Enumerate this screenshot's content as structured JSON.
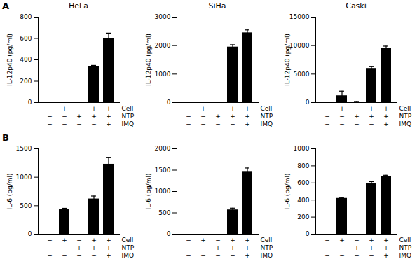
{
  "chart_data": [
    {
      "type": "bar",
      "title": "HeLa",
      "annotations": [
        "A"
      ],
      "y_label": "IL-12p40 (pg/ml)",
      "categories": [
        null,
        null,
        null,
        null,
        null
      ],
      "values": [
        0,
        0,
        0,
        340,
        600
      ],
      "errors": [
        0,
        0,
        0,
        8,
        50
      ],
      "conditions": [
        {
          "name": "Cell",
          "signs": [
            "−",
            "+",
            "−",
            "+",
            "+"
          ]
        },
        {
          "name": "NTP",
          "signs": [
            "−",
            "−",
            "+",
            "+",
            "+"
          ]
        },
        {
          "name": "IMQ",
          "signs": [
            "−",
            "−",
            "−",
            "−",
            "+"
          ]
        }
      ],
      "color": "#000000",
      "ylim": [
        0,
        800
      ],
      "yticks": [
        0,
        200,
        400,
        600,
        800
      ]
    },
    {
      "type": "bar",
      "title": "SiHa",
      "y_label": "IL-12p40 (pg/ml)",
      "categories": [
        null,
        null,
        null,
        null,
        null
      ],
      "values": [
        0,
        0,
        0,
        1950,
        2450
      ],
      "errors": [
        0,
        0,
        0,
        80,
        100
      ],
      "conditions": [
        {
          "name": "Cell",
          "signs": [
            "−",
            "+",
            "−",
            "+",
            "+"
          ]
        },
        {
          "name": "NTP",
          "signs": [
            "−",
            "−",
            "+",
            "+",
            "+"
          ]
        },
        {
          "name": "IMQ",
          "signs": [
            "−",
            "−",
            "−",
            "−",
            "+"
          ]
        }
      ],
      "color": "#000000",
      "ylim": [
        0,
        3000
      ],
      "yticks": [
        0,
        1000,
        2000,
        3000
      ]
    },
    {
      "type": "bar",
      "title": "Caski",
      "y_label": "IL-12p40 (pg/ml)",
      "categories": [
        null,
        null,
        null,
        null,
        null
      ],
      "values": [
        0,
        1200,
        100,
        6000,
        9500
      ],
      "errors": [
        0,
        800,
        100,
        300,
        400
      ],
      "conditions": [
        {
          "name": "Cell",
          "signs": [
            "−",
            "+",
            "−",
            "+",
            "+"
          ]
        },
        {
          "name": "NTP",
          "signs": [
            "−",
            "−",
            "+",
            "+",
            "+"
          ]
        },
        {
          "name": "IMQ",
          "signs": [
            "−",
            "−",
            "−",
            "−",
            "+"
          ]
        }
      ],
      "color": "#000000",
      "ylim": [
        0,
        15000
      ],
      "yticks": [
        0,
        5000,
        10000,
        15000
      ]
    },
    {
      "type": "bar",
      "annotations": [
        "B"
      ],
      "y_label": "IL-6 (pg/ml)",
      "categories": [
        null,
        null,
        null,
        null,
        null
      ],
      "values": [
        0,
        430,
        0,
        620,
        1230
      ],
      "errors": [
        0,
        25,
        0,
        50,
        120
      ],
      "conditions": [
        {
          "name": "Cell",
          "signs": [
            "−",
            "+",
            "−",
            "+",
            "+"
          ]
        },
        {
          "name": "NTP",
          "signs": [
            "−",
            "−",
            "+",
            "+",
            "+"
          ]
        },
        {
          "name": "IMQ",
          "signs": [
            "−",
            "−",
            "−",
            "−",
            "+"
          ]
        }
      ],
      "color": "#000000",
      "ylim": [
        0,
        1500
      ],
      "yticks": [
        0,
        500,
        1000,
        1500
      ]
    },
    {
      "type": "bar",
      "y_label": "IL-6 (pg/ml)",
      "categories": [
        null,
        null,
        null,
        null,
        null
      ],
      "values": [
        0,
        0,
        0,
        570,
        1470
      ],
      "errors": [
        0,
        0,
        0,
        40,
        80
      ],
      "conditions": [
        {
          "name": "Cell",
          "signs": [
            "−",
            "+",
            "−",
            "+",
            "+"
          ]
        },
        {
          "name": "NTP",
          "signs": [
            "−",
            "−",
            "+",
            "+",
            "+"
          ]
        },
        {
          "name": "IMQ",
          "signs": [
            "−",
            "−",
            "−",
            "−",
            "+"
          ]
        }
      ],
      "color": "#000000",
      "ylim": [
        0,
        2000
      ],
      "yticks": [
        0,
        500,
        1000,
        1500,
        2000
      ]
    },
    {
      "type": "bar",
      "y_label": "IL-6 (pg/ml)",
      "categories": [
        null,
        null,
        null,
        null,
        null
      ],
      "values": [
        0,
        420,
        0,
        590,
        680
      ],
      "errors": [
        0,
        8,
        0,
        25,
        10
      ],
      "conditions": [
        {
          "name": "Cell",
          "signs": [
            "−",
            "+",
            "−",
            "+",
            "+"
          ]
        },
        {
          "name": "NTP",
          "signs": [
            "−",
            "−",
            "+",
            "+",
            "+"
          ]
        },
        {
          "name": "IMQ",
          "signs": [
            "−",
            "−",
            "−",
            "−",
            "+"
          ]
        }
      ],
      "color": "#000000",
      "ylim": [
        0,
        1000
      ],
      "yticks": [
        0,
        200,
        400,
        600,
        800,
        1000
      ]
    }
  ]
}
